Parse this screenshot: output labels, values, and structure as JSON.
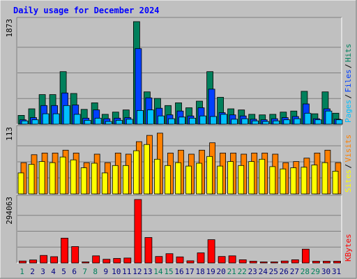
{
  "chart_data": {
    "type": "bar",
    "title": "Daily usage for December 2024",
    "colors": {
      "title": "#0000ff",
      "background": "#c0c0c0",
      "plot_bg": "#c0c0c0",
      "hits": "#00805c",
      "files": "#0040ff",
      "pages": "#00c0ff",
      "visits": "#ff8000",
      "sites": "#ffff00",
      "kbytes": "#ff0000",
      "weekend_label": "#00805c",
      "weekday_label": "#000080",
      "separator": "#000000"
    },
    "x": {
      "categories": [
        "1",
        "2",
        "3",
        "4",
        "5",
        "6",
        "7",
        "8",
        "9",
        "10",
        "11",
        "12",
        "13",
        "14",
        "15",
        "16",
        "17",
        "18",
        "19",
        "20",
        "21",
        "22",
        "23",
        "24",
        "25",
        "26",
        "27",
        "28",
        "29",
        "30",
        "31"
      ],
      "weekend_days": [
        "1",
        "7",
        "8",
        "14",
        "15",
        "21",
        "22",
        "28",
        "29"
      ]
    },
    "panels": [
      {
        "id": "hits",
        "ymax_label": "1873",
        "ymax": 1873,
        "legend": [
          "Pages",
          "Files",
          "Hits"
        ],
        "series": [
          {
            "name": "Hits",
            "color_key": "hits",
            "values": [
              160,
              280,
              540,
              540,
              960,
              560,
              270,
              390,
              180,
              220,
              260,
              1873,
              590,
              470,
              340,
              390,
              300,
              420,
              960,
              490,
              280,
              260,
              180,
              170,
              180,
              220,
              240,
              600,
              190,
              590,
              200
            ]
          },
          {
            "name": "Files",
            "color_key": "files",
            "values": [
              80,
              120,
              340,
              340,
              570,
              350,
              110,
              260,
              100,
              110,
              120,
              1380,
              480,
              290,
              170,
              240,
              150,
              300,
              640,
              210,
              170,
              150,
              90,
              80,
              100,
              120,
              140,
              370,
              100,
              280,
              90
            ]
          },
          {
            "name": "Pages",
            "color_key": "pages",
            "values": [
              60,
              80,
              190,
              190,
              340,
              180,
              70,
              110,
              50,
              70,
              90,
              250,
              260,
              150,
              100,
              130,
              110,
              150,
              140,
              180,
              90,
              100,
              60,
              50,
              60,
              80,
              100,
              200,
              80,
              240,
              80
            ]
          }
        ]
      },
      {
        "id": "visits",
        "ymax_label": "113",
        "ymax": 113,
        "legend": [
          "Sites",
          "Visits"
        ],
        "series": [
          {
            "name": "Visits",
            "color_key": "visits",
            "values": [
              55,
              69,
              72,
              72,
              77,
              72,
              55,
              70,
              55,
              72,
              70,
              92,
              103,
              107,
              72,
              77,
              70,
              77,
              90,
              72,
              72,
              70,
              72,
              72,
              70,
              55,
              57,
              63,
              72,
              77,
              55
            ]
          },
          {
            "name": "Sites",
            "color_key": "sites",
            "values": [
              37,
              52,
              57,
              55,
              65,
              60,
              46,
              54,
              37,
              50,
              50,
              76,
              87,
              61,
              50,
              55,
              49,
              54,
              66,
              49,
              57,
              50,
              57,
              61,
              48,
              44,
              46,
              47,
              51,
              55,
              40
            ]
          }
        ]
      },
      {
        "id": "kbytes",
        "ymax_label": "294063",
        "ymax": 294063,
        "legend": [
          "KBytes"
        ],
        "series": [
          {
            "name": "KBytes",
            "color_key": "kbytes",
            "values": [
              9000,
              14000,
              35000,
              29000,
              115000,
              76000,
              5000,
              33000,
              17000,
              21000,
              23000,
              294063,
              118000,
              30000,
              43000,
              28000,
              10000,
              47000,
              108000,
              30000,
              33000,
              15000,
              8000,
              5000,
              5000,
              9000,
              15000,
              64000,
              8000,
              8000,
              8000
            ]
          }
        ]
      }
    ]
  }
}
